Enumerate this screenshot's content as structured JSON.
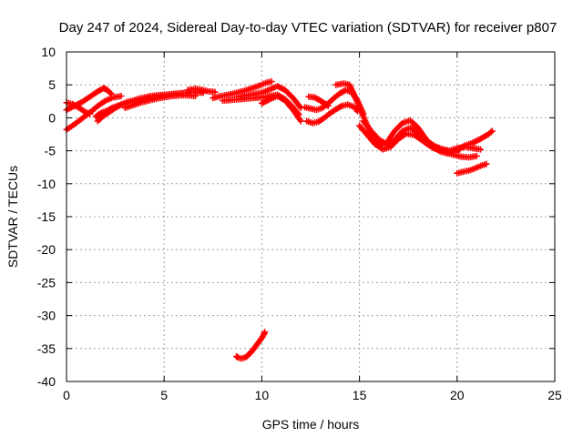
{
  "chart_data": {
    "type": "scatter",
    "title": "Day 247 of 2024, Sidereal Day-to-day VTEC variation (SDTVAR) for receiver p807",
    "xlabel": "GPS time / hours",
    "ylabel": "SDTVAR / TECUs",
    "xlim": [
      0,
      25
    ],
    "ylim": [
      -40,
      10
    ],
    "xticks": [
      0,
      5,
      10,
      15,
      20,
      25
    ],
    "yticks": [
      10,
      5,
      0,
      -5,
      -10,
      -15,
      -20,
      -25,
      -30,
      -35,
      -40
    ],
    "grid": true,
    "marker": "+",
    "color": "#ff0000",
    "series": [
      {
        "name": "s01",
        "x": [
          0.0,
          0.4,
          0.8,
          1.2,
          1.6,
          1.9,
          2.1,
          2.3
        ],
        "y": [
          1.2,
          1.8,
          2.4,
          3.2,
          4.0,
          4.5,
          4.2,
          3.6
        ]
      },
      {
        "name": "s02",
        "x": [
          0.0,
          0.4,
          0.8,
          1.2,
          1.6,
          2.0,
          2.4,
          2.8
        ],
        "y": [
          -1.8,
          -1.0,
          -0.1,
          0.8,
          1.8,
          2.6,
          3.1,
          3.3
        ]
      },
      {
        "name": "s03",
        "x": [
          0.0,
          0.3,
          0.6,
          0.9,
          1.2
        ],
        "y": [
          2.3,
          2.1,
          1.6,
          1.0,
          0.6
        ]
      },
      {
        "name": "s04",
        "x": [
          1.5,
          1.8,
          2.1,
          2.4,
          2.7,
          3.0,
          3.3,
          3.6,
          3.9,
          4.2,
          4.5,
          4.8,
          5.1,
          5.4,
          5.8,
          6.2,
          6.6,
          7.0
        ],
        "y": [
          0.2,
          0.8,
          1.1,
          1.6,
          1.9,
          2.2,
          2.4,
          2.6,
          2.8,
          3.0,
          3.2,
          3.3,
          3.4,
          3.6,
          3.7,
          3.8,
          3.9,
          4.0
        ]
      },
      {
        "name": "s05",
        "x": [
          1.6,
          1.9,
          2.2,
          2.5,
          2.8,
          3.1,
          3.4,
          3.7,
          4.0,
          4.3,
          4.6,
          5.0,
          5.4,
          5.8,
          6.2,
          6.6,
          7.0
        ],
        "y": [
          -0.5,
          0.3,
          0.9,
          1.5,
          2.0,
          2.4,
          2.6,
          2.9,
          3.1,
          3.3,
          3.4,
          3.5,
          3.6,
          3.7,
          3.8,
          3.9,
          3.8
        ]
      },
      {
        "name": "s06",
        "x": [
          3.0,
          3.4,
          3.8,
          4.2,
          4.6,
          5.0,
          5.4,
          5.8,
          6.2,
          6.6
        ],
        "y": [
          1.5,
          1.9,
          2.3,
          2.6,
          2.9,
          3.1,
          3.3,
          3.4,
          3.4,
          3.3
        ]
      },
      {
        "name": "s07",
        "x": [
          6.2,
          6.6,
          7.0,
          7.3,
          7.6
        ],
        "y": [
          4.2,
          4.4,
          4.2,
          4.0,
          3.9
        ]
      },
      {
        "name": "s08",
        "x": [
          7.5,
          7.9,
          8.3,
          8.7,
          9.1,
          9.5,
          9.9,
          10.2,
          10.5
        ],
        "y": [
          3.0,
          3.3,
          3.5,
          3.8,
          4.1,
          4.5,
          4.9,
          5.3,
          5.5
        ]
      },
      {
        "name": "s09",
        "x": [
          8.0,
          8.4,
          8.8,
          9.2,
          9.6,
          10.0,
          10.4,
          10.8,
          11.2,
          11.6,
          11.9
        ],
        "y": [
          2.6,
          2.7,
          2.8,
          2.9,
          3.0,
          3.1,
          3.3,
          3.5,
          2.8,
          1.6,
          0.5
        ]
      },
      {
        "name": "s10",
        "x": [
          8.8,
          9.2,
          9.6,
          10.0,
          10.4,
          10.8,
          11.2,
          11.6,
          12.0
        ],
        "y": [
          3.2,
          3.4,
          3.6,
          3.8,
          4.3,
          4.8,
          4.2,
          3.0,
          1.5
        ]
      },
      {
        "name": "s11",
        "x": [
          10.0,
          10.4,
          10.8,
          11.2,
          11.6,
          12.0
        ],
        "y": [
          2.2,
          2.8,
          3.3,
          2.6,
          1.2,
          -0.5
        ]
      },
      {
        "name": "s12",
        "x": [
          8.7,
          8.8,
          8.9,
          9.0,
          9.1,
          9.2,
          9.3,
          9.4,
          9.5,
          9.6,
          9.7,
          9.8,
          9.9,
          10.0,
          10.1,
          10.15
        ],
        "y": [
          -36.2,
          -36.4,
          -36.5,
          -36.5,
          -36.4,
          -36.3,
          -36.0,
          -35.7,
          -35.4,
          -35.0,
          -34.6,
          -34.2,
          -33.8,
          -33.4,
          -32.9,
          -32.5
        ]
      },
      {
        "name": "s13",
        "x": [
          12.3,
          12.6,
          12.9,
          13.2,
          13.5,
          13.8,
          14.1,
          14.4,
          14.7,
          14.9
        ],
        "y": [
          -0.5,
          -0.8,
          -0.6,
          0.0,
          0.7,
          1.3,
          1.8,
          2.0,
          1.7,
          1.0
        ]
      },
      {
        "name": "s14",
        "x": [
          12.2,
          12.5,
          12.8,
          13.1,
          13.4,
          13.7,
          14.0,
          14.3,
          14.6,
          14.9,
          15.2
        ],
        "y": [
          1.6,
          1.4,
          1.2,
          1.5,
          2.2,
          3.0,
          3.7,
          4.2,
          3.9,
          2.6,
          0.6
        ]
      },
      {
        "name": "s15",
        "x": [
          12.4,
          12.7,
          13.0,
          13.2,
          13.4
        ],
        "y": [
          3.2,
          3.1,
          2.6,
          2.2,
          1.8
        ]
      },
      {
        "name": "s16",
        "x": [
          13.8,
          14.2,
          14.5,
          14.8,
          15.2,
          15.6,
          16.0,
          16.4,
          16.8,
          17.2,
          17.6,
          18.0,
          18.4,
          18.8,
          19.2,
          19.6,
          20.0,
          20.4,
          20.8,
          21.2,
          21.6,
          21.8
        ],
        "y": [
          5.0,
          5.2,
          5.0,
          3.0,
          0.2,
          -2.5,
          -4.2,
          -3.8,
          -2.0,
          -0.8,
          -0.4,
          -1.5,
          -3.2,
          -4.5,
          -5.2,
          -5.4,
          -4.9,
          -4.2,
          -3.8,
          -3.2,
          -2.5,
          -2.0
        ]
      },
      {
        "name": "s17",
        "x": [
          15.2,
          15.6,
          16.0,
          16.4,
          16.8,
          17.2,
          17.6,
          18.0,
          18.4,
          18.8,
          19.2,
          19.6,
          20.0
        ],
        "y": [
          -0.5,
          -2.0,
          -3.3,
          -4.0,
          -3.4,
          -2.0,
          -1.5,
          -2.2,
          -3.4,
          -4.2,
          -4.7,
          -5.0,
          -5.2
        ]
      },
      {
        "name": "s18",
        "x": [
          15.0,
          15.4,
          15.8,
          16.2,
          16.6,
          17.0,
          17.4,
          17.8,
          18.2,
          18.6,
          19.0,
          19.4,
          19.8,
          20.2,
          20.6,
          21.0
        ],
        "y": [
          -1.2,
          -2.6,
          -4.0,
          -4.8,
          -4.4,
          -3.2,
          -2.4,
          -2.6,
          -3.4,
          -4.2,
          -4.8,
          -5.3,
          -5.6,
          -5.9,
          -6.0,
          -5.8
        ]
      },
      {
        "name": "s19",
        "x": [
          18.0,
          18.4,
          18.8,
          19.2,
          19.6,
          20.0,
          20.4,
          20.8,
          21.2
        ],
        "y": [
          -2.8,
          -3.8,
          -4.6,
          -5.0,
          -5.0,
          -4.6,
          -4.4,
          -4.6,
          -4.8
        ]
      },
      {
        "name": "s20",
        "x": [
          20.0,
          20.3,
          20.6,
          20.9,
          21.2,
          21.5
        ],
        "y": [
          -8.4,
          -8.2,
          -8.0,
          -7.7,
          -7.3,
          -7.0
        ]
      }
    ]
  }
}
